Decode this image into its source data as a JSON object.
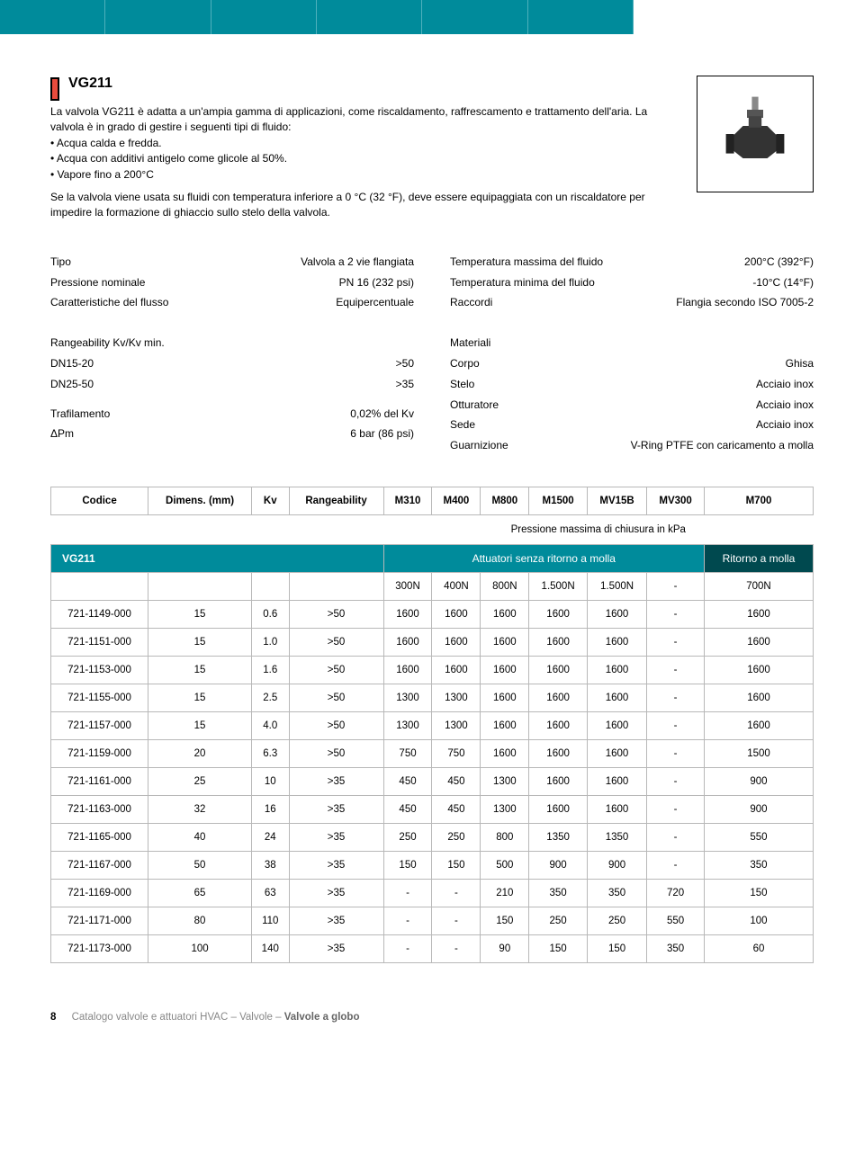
{
  "colors": {
    "teal": "#008b9b",
    "teal_dark": "#00494f",
    "border": "#b8b8b8",
    "marker": "#e84c3d"
  },
  "product": {
    "title": "VG211",
    "intro": "La valvola VG211 è adatta a un'ampia gamma di applicazioni, come riscaldamento, raffrescamento e trattamento dell'aria. La valvola è in grado di gestire i seguenti tipi di fluido:",
    "bullets": [
      "Acqua calda e fredda.",
      "Acqua con additivi antigelo come glicole al 50%.",
      "Vapore fino a 200°C"
    ],
    "warn": "Se la valvola viene usata su fluidi con temperatura inferiore a 0 °C (32 °F), deve essere equipaggiata con un riscaldatore per impedire la formazione di ghiaccio sullo stelo della valvola."
  },
  "specs_left": [
    {
      "label": "Tipo",
      "val": "Valvola a 2 vie flangiata"
    },
    {
      "label": "Pressione nominale",
      "val": "PN 16 (232 psi)"
    },
    {
      "label": "Caratteristiche del flusso",
      "val": "Equipercentuale"
    }
  ],
  "specs_right": [
    {
      "label": "Temperatura massima del fluido",
      "val": "200°C (392°F)"
    },
    {
      "label": "Temperatura minima del fluido",
      "val": "-10°C (14°F)"
    },
    {
      "label": "Raccordi",
      "val": "Flangia secondo ISO 7005-2"
    }
  ],
  "range_left_title": "Rangeability Kv/Kv min.",
  "range_left": [
    {
      "label": "DN15-20",
      "val": ">50"
    },
    {
      "label": "DN25-50",
      "val": ">35"
    }
  ],
  "extra_left": [
    {
      "label": "Trafilamento",
      "val": "0,02% del Kv"
    },
    {
      "label": "ΔPm",
      "val": "6 bar (86 psi)"
    }
  ],
  "mat_title": "Materiali",
  "materials": [
    {
      "label": "Corpo",
      "val": "Ghisa"
    },
    {
      "label": "Stelo",
      "val": "Acciaio inox"
    },
    {
      "label": "Otturatore",
      "val": "Acciaio inox"
    },
    {
      "label": "Sede",
      "val": "Acciaio inox"
    },
    {
      "label": "Guarnizione",
      "val": "V-Ring PTFE con caricamento a molla"
    }
  ],
  "table": {
    "caption": "Pressione massima di chiusura in kPa",
    "band_left": "VG211",
    "band_mid": "Attuatori senza ritorno a molla",
    "band_right": "Ritorno a molla",
    "columns": [
      "Codice",
      "Dimens. (mm)",
      "Kv",
      "Rangeability",
      "M310",
      "M400",
      "M800",
      "M1500",
      "MV15B",
      "MV300",
      "M700"
    ],
    "subheader": [
      "",
      "",
      "",
      "",
      "300N",
      "400N",
      "800N",
      "1.500N",
      "1.500N",
      "-",
      "700N"
    ],
    "rows": [
      [
        "721-1149-000",
        "15",
        "0.6",
        ">50",
        "1600",
        "1600",
        "1600",
        "1600",
        "1600",
        "-",
        "1600"
      ],
      [
        "721-1151-000",
        "15",
        "1.0",
        ">50",
        "1600",
        "1600",
        "1600",
        "1600",
        "1600",
        "-",
        "1600"
      ],
      [
        "721-1153-000",
        "15",
        "1.6",
        ">50",
        "1600",
        "1600",
        "1600",
        "1600",
        "1600",
        "-",
        "1600"
      ],
      [
        "721-1155-000",
        "15",
        "2.5",
        ">50",
        "1300",
        "1300",
        "1600",
        "1600",
        "1600",
        "-",
        "1600"
      ],
      [
        "721-1157-000",
        "15",
        "4.0",
        ">50",
        "1300",
        "1300",
        "1600",
        "1600",
        "1600",
        "-",
        "1600"
      ],
      [
        "721-1159-000",
        "20",
        "6.3",
        ">50",
        "750",
        "750",
        "1600",
        "1600",
        "1600",
        "-",
        "1500"
      ],
      [
        "721-1161-000",
        "25",
        "10",
        ">35",
        "450",
        "450",
        "1300",
        "1600",
        "1600",
        "-",
        "900"
      ],
      [
        "721-1163-000",
        "32",
        "16",
        ">35",
        "450",
        "450",
        "1300",
        "1600",
        "1600",
        "-",
        "900"
      ],
      [
        "721-1165-000",
        "40",
        "24",
        ">35",
        "250",
        "250",
        "800",
        "1350",
        "1350",
        "-",
        "550"
      ],
      [
        "721-1167-000",
        "50",
        "38",
        ">35",
        "150",
        "150",
        "500",
        "900",
        "900",
        "-",
        "350"
      ],
      [
        "721-1169-000",
        "65",
        "63",
        ">35",
        "-",
        "-",
        "210",
        "350",
        "350",
        "720",
        "150"
      ],
      [
        "721-1171-000",
        "80",
        "110",
        ">35",
        "-",
        "-",
        "150",
        "250",
        "250",
        "550",
        "100"
      ],
      [
        "721-1173-000",
        "100",
        "140",
        ">35",
        "-",
        "-",
        "90",
        "150",
        "150",
        "350",
        "60"
      ]
    ]
  },
  "footer": {
    "page": "8",
    "crumbs": [
      "Catalogo valvole e attuatori HVAC",
      "Valvole",
      "Valvole a globo"
    ]
  }
}
